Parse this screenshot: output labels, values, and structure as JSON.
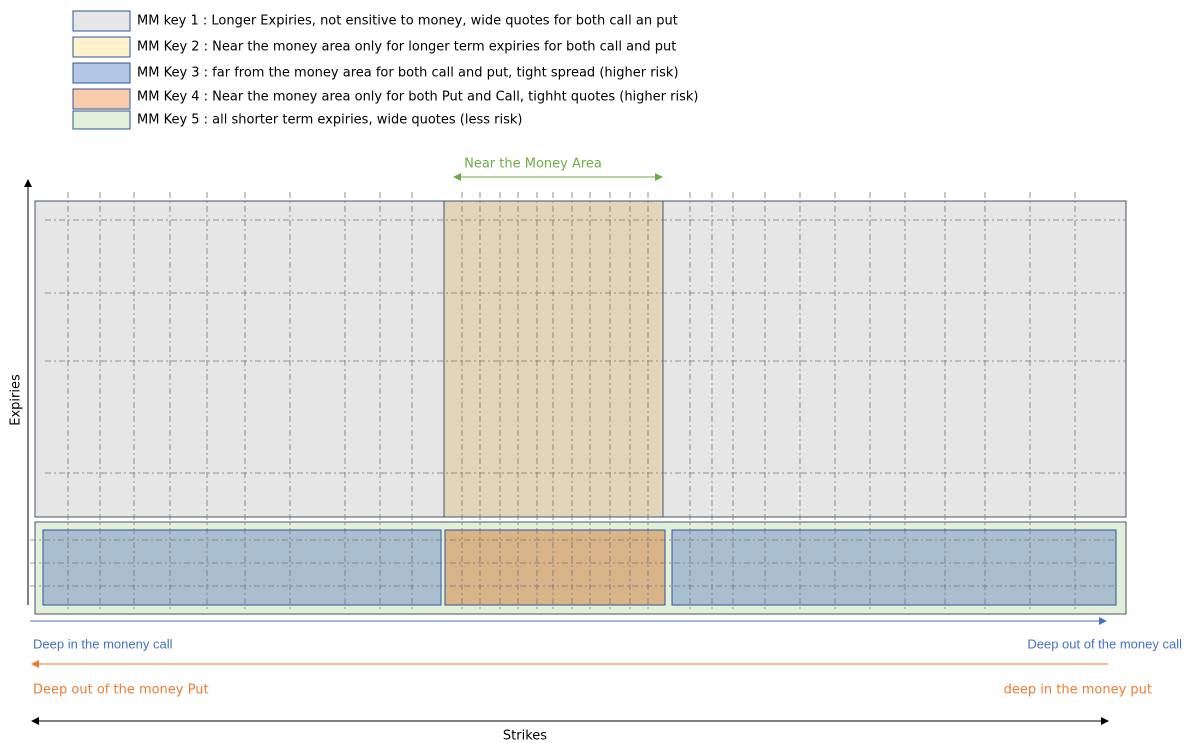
{
  "legend": [
    {
      "label": "MM key 1 : Longer Expiries, not ensitive to money, wide quotes for both call an put"
    },
    {
      "label": "MM Key 2 : Near the money area only for longer term expiries for both call and put"
    },
    {
      "label": "MM Key 3 : far from the money area for both call and put, tight spread (higher risk)"
    },
    {
      "label": "MM Key 4 : Near the money area only for both Put and Call, tighht quotes (higher risk)"
    },
    {
      "label": "MM Key 5 : all shorter term expiries, wide quotes (less risk)"
    }
  ],
  "near_money_label": "Near the Money Area",
  "y_axis_label": "Expiries",
  "x_axis_label": "Strikes",
  "call_left": "Deep in the moneny call",
  "call_right": "Deep out of the money call",
  "put_left": "Deep out of the money Put",
  "put_right": "deep in the money put"
}
